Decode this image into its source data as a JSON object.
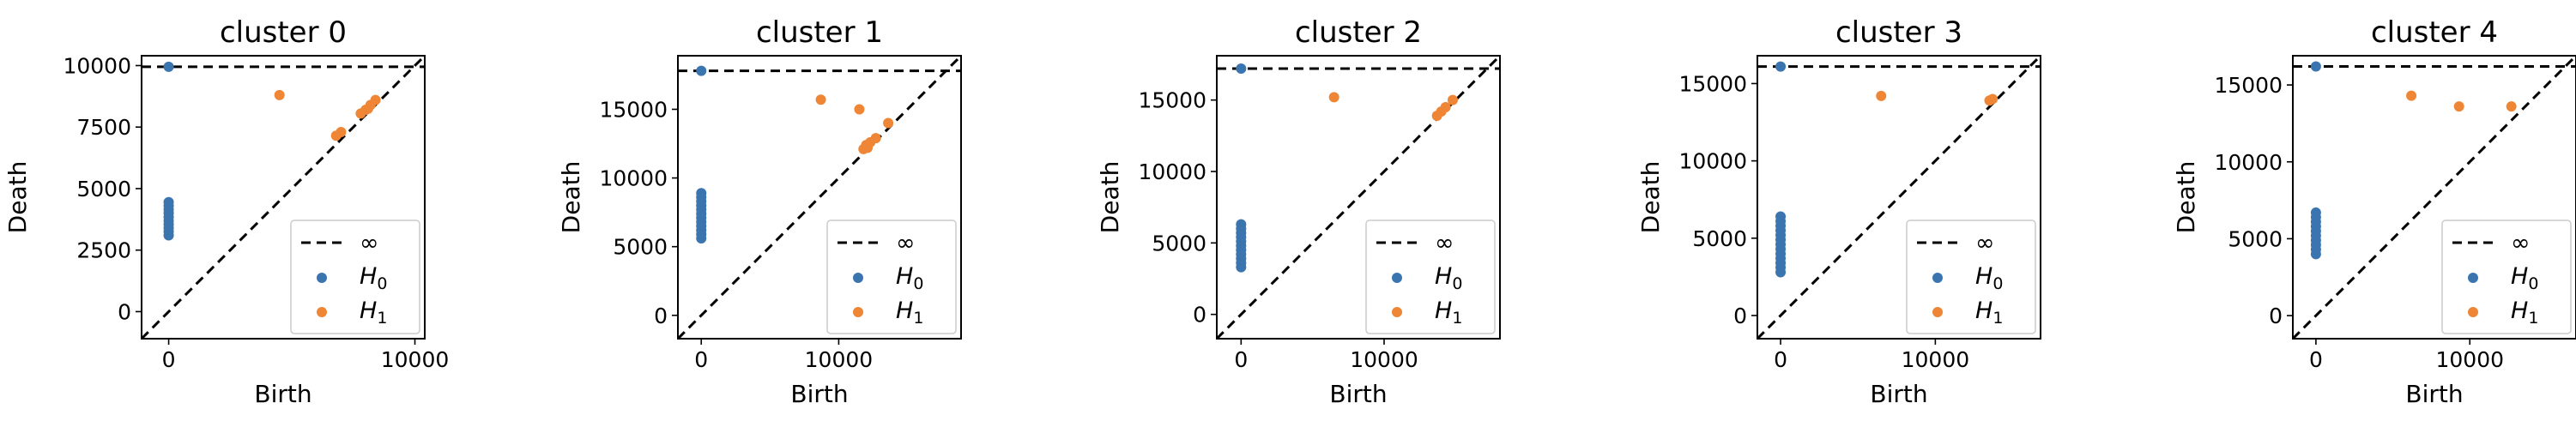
{
  "colors": {
    "h0": "#3b75af",
    "h1": "#ef8636",
    "diag": "#000000"
  },
  "chart_data": [
    {
      "type": "scatter",
      "title": "cluster 0",
      "xlabel": "Birth",
      "ylabel": "Death",
      "xlim": [
        -1100,
        10400
      ],
      "ylim": [
        -1100,
        10400
      ],
      "xticks": [
        0,
        10000
      ],
      "yticks": [
        0,
        2500,
        5000,
        7500,
        10000
      ],
      "xtick_labels": [
        "0",
        "10000"
      ],
      "ytick_labels": [
        "0",
        "2500",
        "5000",
        "7500",
        "10000"
      ],
      "infinity": 9950,
      "legend": {
        "placement": "lower-right",
        "entries": [
          "∞",
          "H_0",
          "H_1"
        ]
      },
      "series": [
        {
          "name": "H_0",
          "points": [
            [
              0,
              9950
            ],
            [
              0,
              4450
            ],
            [
              0,
              4300
            ],
            [
              0,
              4150
            ],
            [
              0,
              4000
            ],
            [
              0,
              3850
            ],
            [
              0,
              3700
            ],
            [
              0,
              3550
            ],
            [
              0,
              3400
            ],
            [
              0,
              3250
            ],
            [
              0,
              3100
            ]
          ]
        },
        {
          "name": "H_1",
          "points": [
            [
              4500,
              8800
            ],
            [
              6800,
              7150
            ],
            [
              7000,
              7300
            ],
            [
              7800,
              8050
            ],
            [
              8000,
              8200
            ],
            [
              8200,
              8400
            ],
            [
              8400,
              8600
            ],
            [
              8100,
              8250
            ]
          ]
        }
      ]
    },
    {
      "type": "scatter",
      "title": "cluster 1",
      "xlabel": "Birth",
      "ylabel": "Death",
      "xlim": [
        -1700,
        18900
      ],
      "ylim": [
        -1700,
        18900
      ],
      "xticks": [
        0,
        10000
      ],
      "yticks": [
        0,
        5000,
        10000,
        15000
      ],
      "xtick_labels": [
        "0",
        "10000"
      ],
      "ytick_labels": [
        "0",
        "5000",
        "10000",
        "15000"
      ],
      "infinity": 17800,
      "legend": {
        "placement": "lower-right",
        "entries": [
          "∞",
          "H_0",
          "H_1"
        ]
      },
      "series": [
        {
          "name": "H_0",
          "points": [
            [
              0,
              17800
            ],
            [
              0,
              8900
            ],
            [
              0,
              8600
            ],
            [
              0,
              8300
            ],
            [
              0,
              8000
            ],
            [
              0,
              7700
            ],
            [
              0,
              7400
            ],
            [
              0,
              7100
            ],
            [
              0,
              6800
            ],
            [
              0,
              6500
            ],
            [
              0,
              6200
            ],
            [
              0,
              5900
            ],
            [
              0,
              5600
            ]
          ]
        },
        {
          "name": "H_1",
          "points": [
            [
              8700,
              15700
            ],
            [
              11500,
              15000
            ],
            [
              11800,
              12100
            ],
            [
              12000,
              12400
            ],
            [
              12300,
              12600
            ],
            [
              12700,
              12900
            ],
            [
              13600,
              14000
            ],
            [
              12100,
              12200
            ]
          ]
        }
      ]
    },
    {
      "type": "scatter",
      "title": "cluster 2",
      "xlabel": "Birth",
      "ylabel": "Death",
      "xlim": [
        -1700,
        18100
      ],
      "ylim": [
        -1700,
        18100
      ],
      "xticks": [
        0,
        10000
      ],
      "yticks": [
        0,
        5000,
        10000,
        15000
      ],
      "xtick_labels": [
        "0",
        "10000"
      ],
      "ytick_labels": [
        "0",
        "5000",
        "10000",
        "15000"
      ],
      "infinity": 17200,
      "legend": {
        "placement": "lower-right",
        "entries": [
          "∞",
          "H_0",
          "H_1"
        ]
      },
      "series": [
        {
          "name": "H_0",
          "points": [
            [
              0,
              17200
            ],
            [
              0,
              6300
            ],
            [
              0,
              6000
            ],
            [
              0,
              5700
            ],
            [
              0,
              5400
            ],
            [
              0,
              5100
            ],
            [
              0,
              4800
            ],
            [
              0,
              4500
            ],
            [
              0,
              4200
            ],
            [
              0,
              3900
            ],
            [
              0,
              3600
            ],
            [
              0,
              3300
            ]
          ]
        },
        {
          "name": "H_1",
          "points": [
            [
              6500,
              15200
            ],
            [
              13700,
              13900
            ],
            [
              14000,
              14200
            ],
            [
              14300,
              14500
            ],
            [
              14800,
              15000
            ]
          ]
        }
      ]
    },
    {
      "type": "scatter",
      "title": "cluster 3",
      "xlabel": "Birth",
      "ylabel": "Death",
      "xlim": [
        -1500,
        16800
      ],
      "ylim": [
        -1500,
        16800
      ],
      "xticks": [
        0,
        10000
      ],
      "yticks": [
        0,
        5000,
        10000,
        15000
      ],
      "xtick_labels": [
        "0",
        "10000"
      ],
      "ytick_labels": [
        "0",
        "5000",
        "10000",
        "15000"
      ],
      "infinity": 16100,
      "legend": {
        "placement": "lower-right",
        "entries": [
          "∞",
          "H_0",
          "H_1"
        ]
      },
      "series": [
        {
          "name": "H_0",
          "points": [
            [
              0,
              16100
            ],
            [
              0,
              6400
            ],
            [
              0,
              6100
            ],
            [
              0,
              5800
            ],
            [
              0,
              5500
            ],
            [
              0,
              5200
            ],
            [
              0,
              4900
            ],
            [
              0,
              4600
            ],
            [
              0,
              4300
            ],
            [
              0,
              4000
            ],
            [
              0,
              3700
            ],
            [
              0,
              3400
            ],
            [
              0,
              3100
            ],
            [
              0,
              2800
            ]
          ]
        },
        {
          "name": "H_1",
          "points": [
            [
              6500,
              14200
            ],
            [
              13500,
              13900
            ],
            [
              13700,
              14000
            ]
          ]
        }
      ]
    },
    {
      "type": "scatter",
      "title": "cluster 4",
      "xlabel": "Birth",
      "ylabel": "Death",
      "xlim": [
        -1500,
        16900
      ],
      "ylim": [
        -1500,
        16900
      ],
      "xticks": [
        0,
        10000
      ],
      "yticks": [
        0,
        5000,
        10000,
        15000
      ],
      "xtick_labels": [
        "0",
        "10000"
      ],
      "ytick_labels": [
        "0",
        "5000",
        "10000",
        "15000"
      ],
      "infinity": 16200,
      "legend": {
        "placement": "lower-right",
        "entries": [
          "∞",
          "H_0",
          "H_1"
        ]
      },
      "series": [
        {
          "name": "H_0",
          "points": [
            [
              0,
              16200
            ],
            [
              0,
              6700
            ],
            [
              0,
              6400
            ],
            [
              0,
              6100
            ],
            [
              0,
              5800
            ],
            [
              0,
              5500
            ],
            [
              0,
              5200
            ],
            [
              0,
              4900
            ],
            [
              0,
              4600
            ],
            [
              0,
              4300
            ],
            [
              0,
              4000
            ]
          ]
        },
        {
          "name": "H_1",
          "points": [
            [
              6200,
              14300
            ],
            [
              9300,
              13600
            ],
            [
              12700,
              13600
            ]
          ]
        }
      ]
    }
  ]
}
